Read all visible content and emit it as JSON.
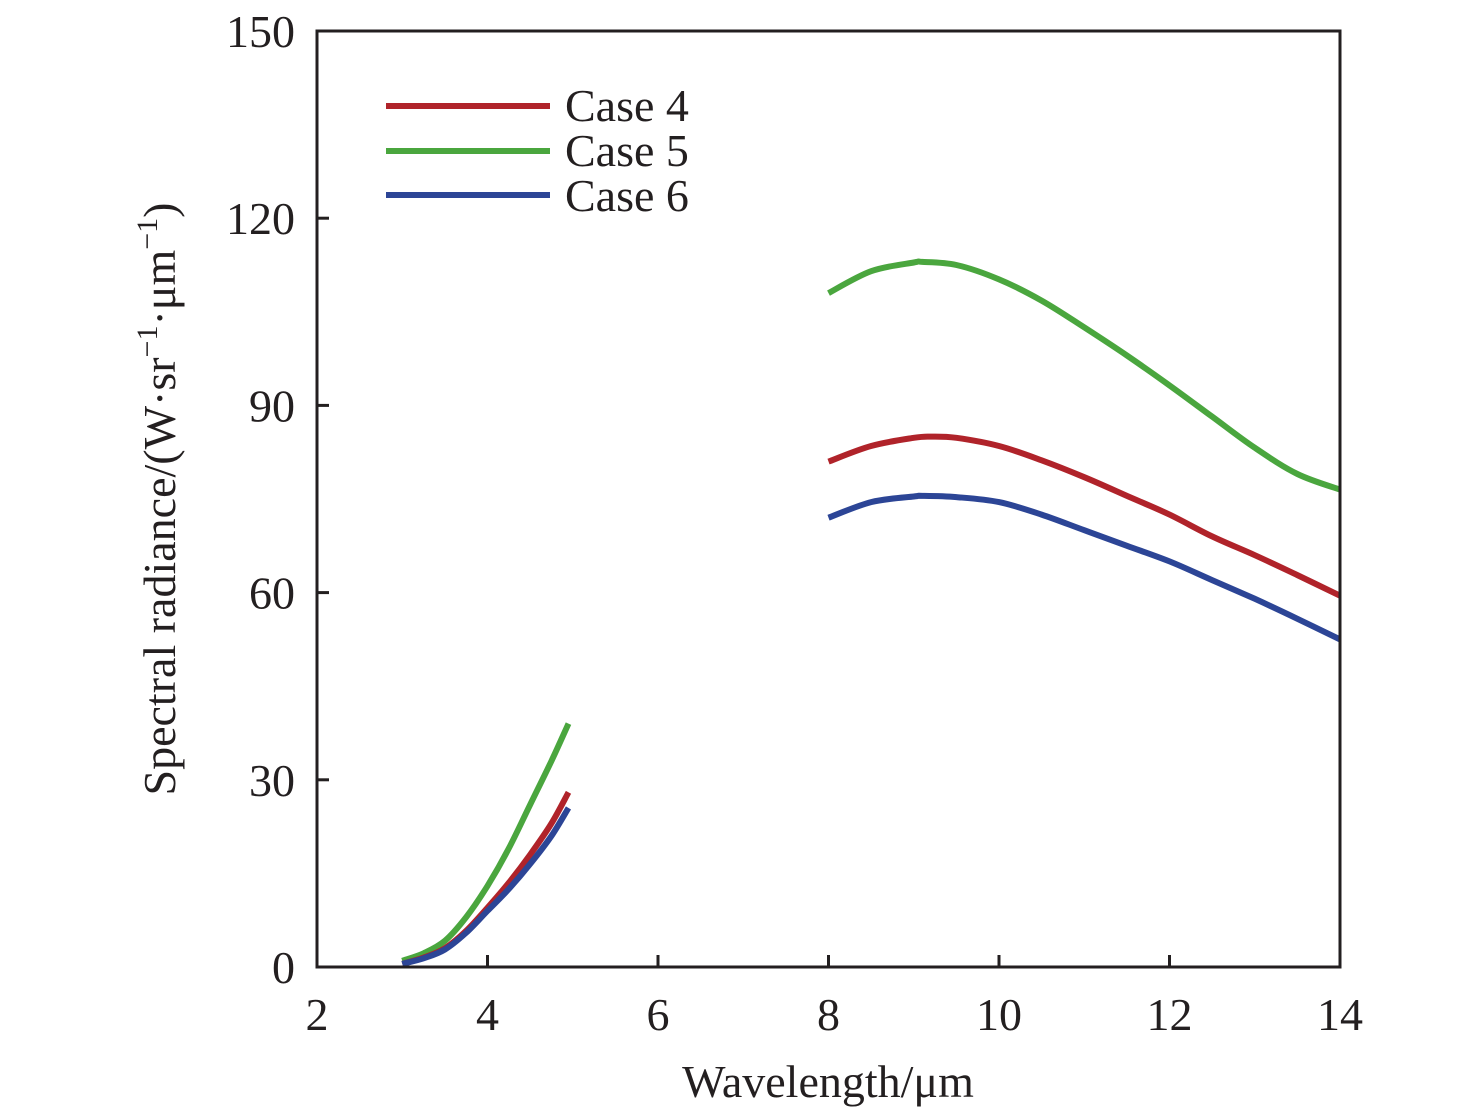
{
  "chart_data": {
    "type": "line",
    "title": "",
    "xlabel": "Wavelength/μm",
    "ylabel": "Spectral radiance/(W·sr⁻¹·μm⁻¹)",
    "ylabel_parts": {
      "prefix": "Spectral radiance/(W·sr",
      "sup1": "−1",
      "mid": "·μm",
      "sup2": "−1",
      "suffix": ")"
    },
    "xlim": [
      2,
      14
    ],
    "ylim": [
      0,
      150
    ],
    "xticks": [
      2,
      4,
      6,
      8,
      10,
      12,
      14
    ],
    "xtick_labels": [
      "2",
      "4",
      "6",
      "8",
      "10",
      "12",
      "14"
    ],
    "yticks": [
      0,
      30,
      60,
      90,
      120,
      150
    ],
    "ytick_labels": [
      "0",
      "30",
      "60",
      "90",
      "120",
      "150"
    ],
    "grid": false,
    "legend_position": "top-left",
    "series": [
      {
        "name": "Case 4",
        "color": "#b0232a",
        "segments": [
          {
            "x": [
              3.0,
              3.25,
              3.5,
              3.75,
              4.0,
              4.25,
              4.5,
              4.75,
              4.95
            ],
            "y": [
              0.5,
              1.5,
              3.0,
              5.8,
              9.5,
              13.5,
              18.0,
              23.0,
              28.0
            ]
          },
          {
            "x": [
              8.0,
              8.5,
              9.0,
              9.2,
              9.5,
              10.0,
              10.5,
              11.0,
              11.5,
              12.0,
              12.5,
              13.0,
              13.5,
              14.0
            ],
            "y": [
              81.0,
              83.5,
              84.8,
              85.0,
              84.8,
              83.5,
              81.2,
              78.5,
              75.5,
              72.5,
              69.0,
              66.0,
              62.8,
              59.5
            ]
          }
        ]
      },
      {
        "name": "Case 5",
        "color": "#4aa63e",
        "segments": [
          {
            "x": [
              3.0,
              3.25,
              3.5,
              3.75,
              4.0,
              4.25,
              4.5,
              4.75,
              4.95
            ],
            "y": [
              1.0,
              2.2,
              4.2,
              8.0,
              13.0,
              19.0,
              26.0,
              33.0,
              39.0
            ]
          },
          {
            "x": [
              8.0,
              8.5,
              9.0,
              9.1,
              9.5,
              10.0,
              10.5,
              11.0,
              11.5,
              12.0,
              12.5,
              13.0,
              13.5,
              14.0
            ],
            "y": [
              108.0,
              111.5,
              112.9,
              113.0,
              112.5,
              110.2,
              106.8,
              102.5,
              98.0,
              93.2,
              88.2,
              83.2,
              79.0,
              76.5
            ]
          }
        ]
      },
      {
        "name": "Case 6",
        "color": "#2c4596",
        "segments": [
          {
            "x": [
              3.0,
              3.25,
              3.5,
              3.75,
              4.0,
              4.25,
              4.5,
              4.75,
              4.95
            ],
            "y": [
              0.5,
              1.4,
              2.8,
              5.5,
              9.0,
              12.5,
              16.5,
              21.0,
              25.5
            ]
          },
          {
            "x": [
              8.0,
              8.5,
              9.0,
              9.1,
              9.5,
              10.0,
              10.5,
              11.0,
              11.5,
              12.0,
              12.5,
              13.0,
              13.5,
              14.0
            ],
            "y": [
              72.0,
              74.5,
              75.4,
              75.5,
              75.3,
              74.5,
              72.5,
              70.0,
              67.5,
              65.0,
              62.0,
              59.0,
              55.8,
              52.5
            ]
          }
        ]
      }
    ]
  }
}
